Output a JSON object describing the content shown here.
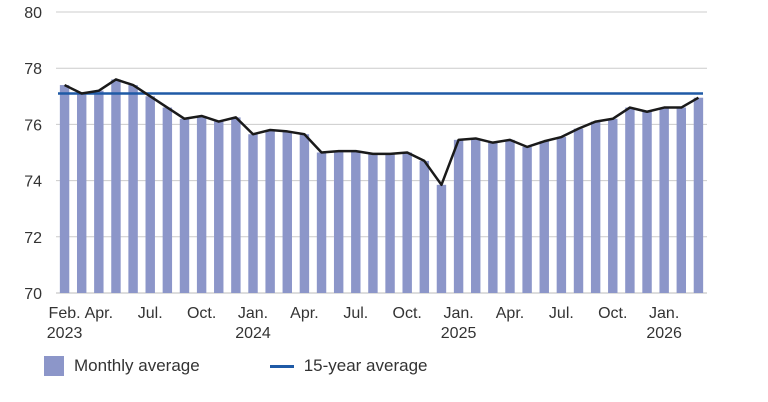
{
  "chart_data": {
    "type": "bar",
    "x_tick_labels": [
      {
        "index": 0,
        "lines": [
          "Feb.",
          "2023"
        ]
      },
      {
        "index": 2,
        "lines": [
          "Apr.",
          ""
        ]
      },
      {
        "index": 5,
        "lines": [
          "Jul.",
          ""
        ]
      },
      {
        "index": 8,
        "lines": [
          "Oct.",
          ""
        ]
      },
      {
        "index": 11,
        "lines": [
          "Jan.",
          "2024"
        ]
      },
      {
        "index": 14,
        "lines": [
          "Apr.",
          ""
        ]
      },
      {
        "index": 17,
        "lines": [
          "Jul.",
          ""
        ]
      },
      {
        "index": 20,
        "lines": [
          "Oct.",
          ""
        ]
      },
      {
        "index": 23,
        "lines": [
          "Jan.",
          "2025"
        ]
      },
      {
        "index": 26,
        "lines": [
          "Apr.",
          ""
        ]
      },
      {
        "index": 29,
        "lines": [
          "Jul.",
          ""
        ]
      },
      {
        "index": 32,
        "lines": [
          "Oct.",
          ""
        ]
      },
      {
        "index": 35,
        "lines": [
          "Jan.",
          "2026"
        ]
      }
    ],
    "series": [
      {
        "name": "Monthly average",
        "type": "bar",
        "color": "#8c96c9",
        "values": [
          77.4,
          77.1,
          77.2,
          77.6,
          77.4,
          77.0,
          76.6,
          76.2,
          76.3,
          76.1,
          76.25,
          75.65,
          75.8,
          75.75,
          75.65,
          75.0,
          75.05,
          75.05,
          74.95,
          74.95,
          75.0,
          74.7,
          73.85,
          75.45,
          75.5,
          75.35,
          75.45,
          75.2,
          75.4,
          75.55,
          75.85,
          76.1,
          76.2,
          76.6,
          76.45,
          76.6,
          76.6,
          76.95
        ]
      },
      {
        "name": "15-year average",
        "type": "line",
        "color": "#1f5aa6",
        "value": 77.1
      }
    ],
    "trend_line_color": "#1a1a1a",
    "ylim": [
      70,
      80
    ],
    "yticks": [
      70,
      72,
      74,
      76,
      78,
      80
    ],
    "grid": true,
    "legend_position": "bottom-left"
  }
}
